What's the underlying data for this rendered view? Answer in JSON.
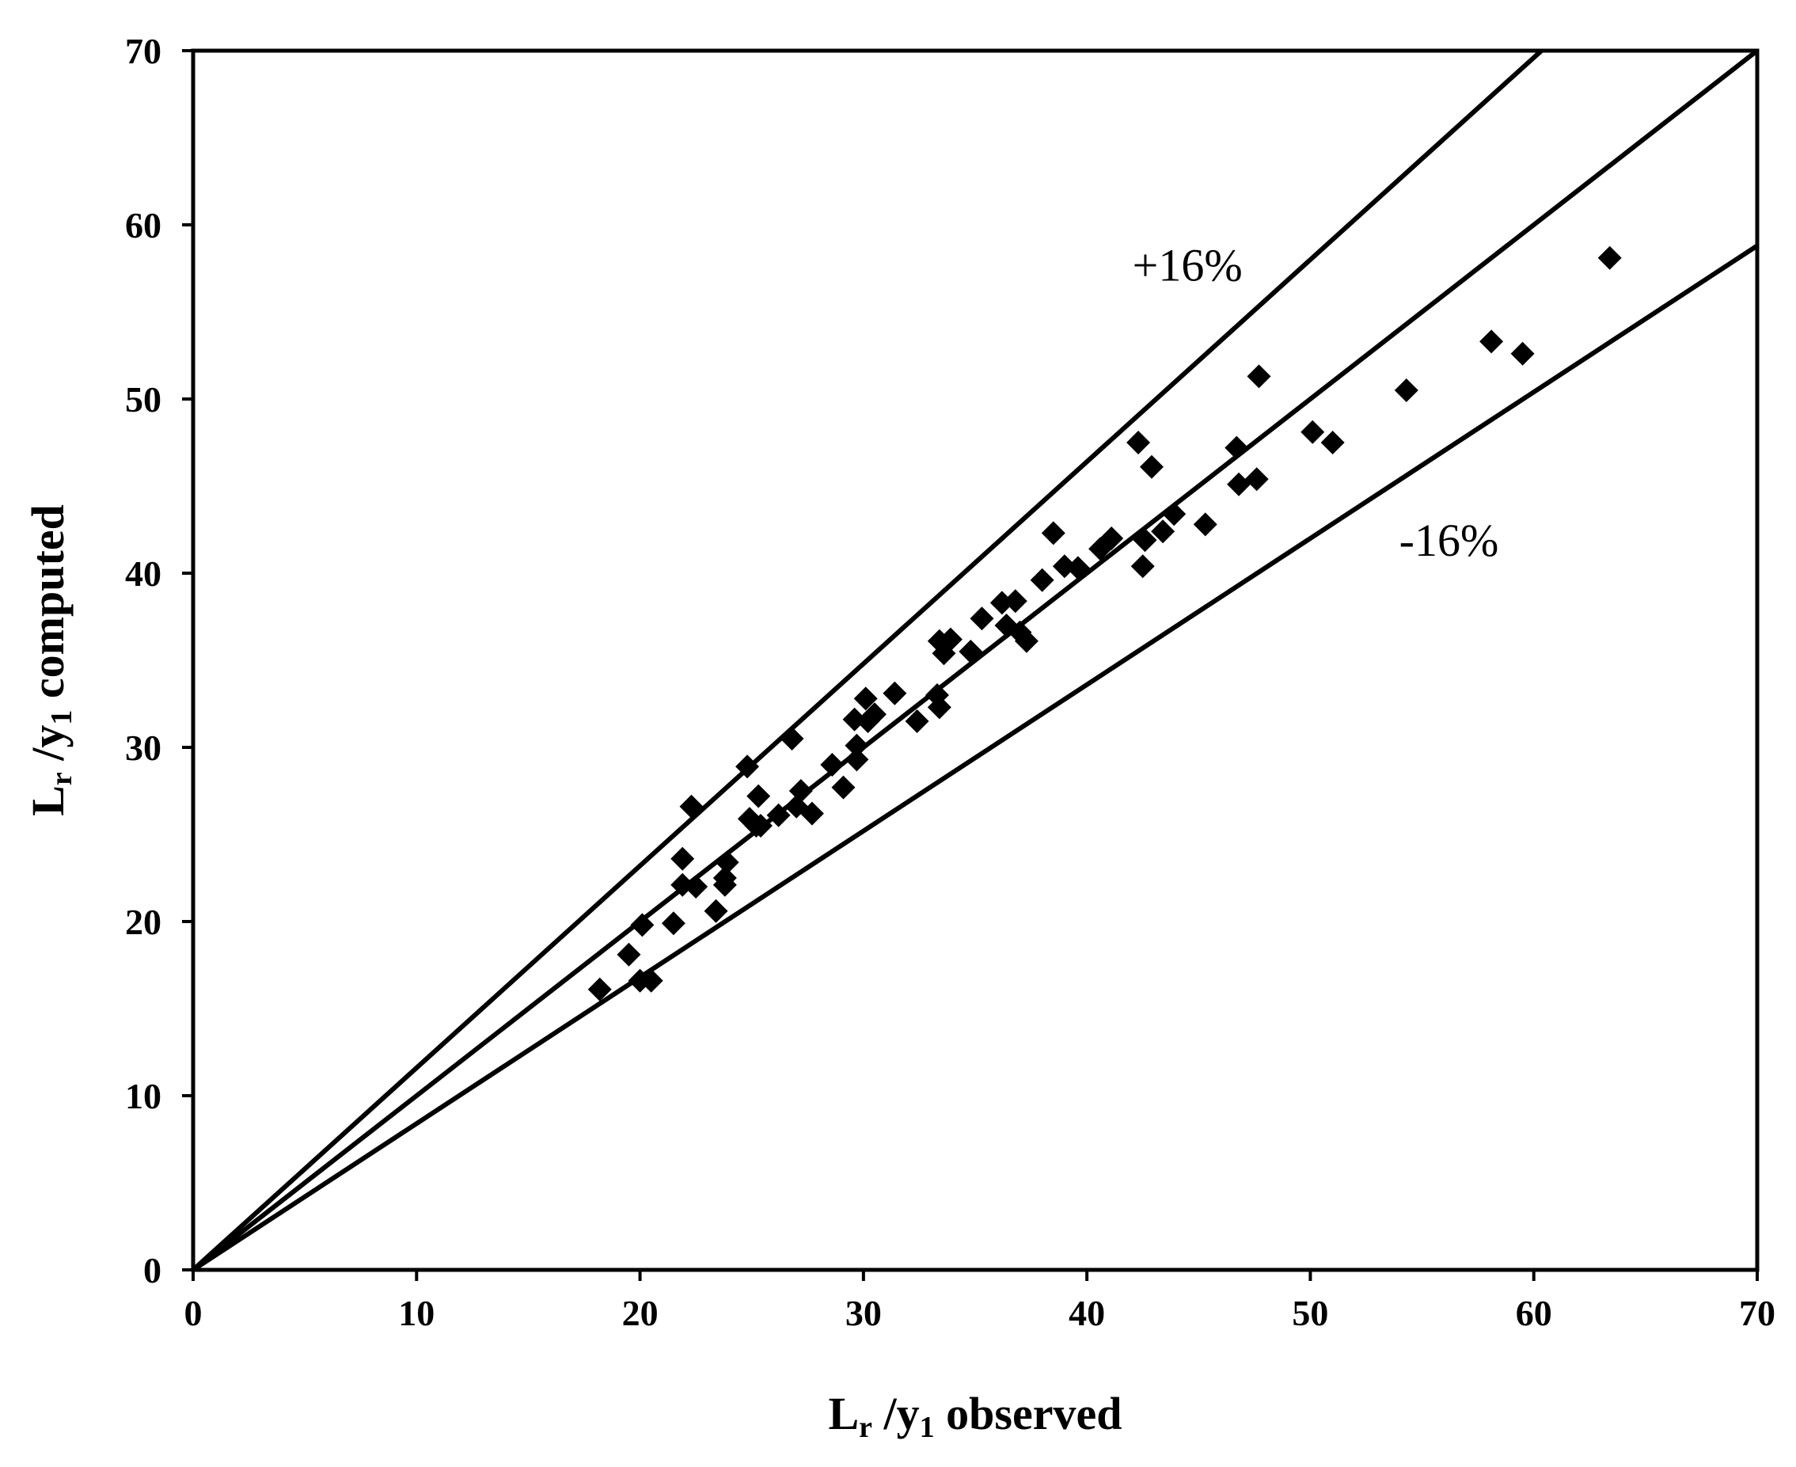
{
  "chart_data": {
    "type": "scatter",
    "xlabel": {
      "main": "L",
      "sub1": "r",
      "mid": " /y",
      "sub2": "1",
      "tail": " observed"
    },
    "ylabel": {
      "main": "L",
      "sub1": "r",
      "mid": " /y",
      "sub2": "1",
      "tail": " computed"
    },
    "xlim": [
      0,
      70
    ],
    "ylim": [
      0,
      70
    ],
    "xticks": [
      0,
      10,
      20,
      30,
      40,
      50,
      60,
      70
    ],
    "yticks": [
      0,
      10,
      20,
      30,
      40,
      50,
      60,
      70
    ],
    "grid": false,
    "legend": "none",
    "colors": {
      "marker": "#000000",
      "line": "#000000"
    },
    "reference_lines": [
      {
        "label": "+16%",
        "slope": 1.16
      },
      {
        "label": "",
        "slope": 1.0
      },
      {
        "label": "-16%",
        "slope": 0.84
      }
    ],
    "annotations": [
      {
        "text": "+16%",
        "x": 44.5,
        "y": 56.8
      },
      {
        "text": "-16%",
        "x": 56.2,
        "y": 41.0
      }
    ],
    "points": [
      [
        18.2,
        16.1
      ],
      [
        19.5,
        18.1
      ],
      [
        20.1,
        19.8
      ],
      [
        20.0,
        16.6
      ],
      [
        20.5,
        16.6
      ],
      [
        21.5,
        19.9
      ],
      [
        21.9,
        23.6
      ],
      [
        21.9,
        22.1
      ],
      [
        22.3,
        26.6
      ],
      [
        22.5,
        22.0
      ],
      [
        23.4,
        20.6
      ],
      [
        23.8,
        22.1
      ],
      [
        23.9,
        23.4
      ],
      [
        23.8,
        22.5
      ],
      [
        24.8,
        28.9
      ],
      [
        24.9,
        25.9
      ],
      [
        25.2,
        25.5
      ],
      [
        25.3,
        27.2
      ],
      [
        25.4,
        25.5
      ],
      [
        26.2,
        26.1
      ],
      [
        26.8,
        30.5
      ],
      [
        27.0,
        26.6
      ],
      [
        27.2,
        27.5
      ],
      [
        27.7,
        26.2
      ],
      [
        28.6,
        29.0
      ],
      [
        29.1,
        27.7
      ],
      [
        29.6,
        31.6
      ],
      [
        29.7,
        29.3
      ],
      [
        29.7,
        30.1
      ],
      [
        30.1,
        32.8
      ],
      [
        30.2,
        31.5
      ],
      [
        30.5,
        31.9
      ],
      [
        31.4,
        33.1
      ],
      [
        32.4,
        31.5
      ],
      [
        33.3,
        33.0
      ],
      [
        33.4,
        32.3
      ],
      [
        33.4,
        36.1
      ],
      [
        33.6,
        35.4
      ],
      [
        33.9,
        36.2
      ],
      [
        34.8,
        35.5
      ],
      [
        35.3,
        37.4
      ],
      [
        36.2,
        38.3
      ],
      [
        36.4,
        37.0
      ],
      [
        36.8,
        38.4
      ],
      [
        37.0,
        36.6
      ],
      [
        37.3,
        36.1
      ],
      [
        38.0,
        39.6
      ],
      [
        38.5,
        42.3
      ],
      [
        39.0,
        40.4
      ],
      [
        39.6,
        40.3
      ],
      [
        40.6,
        41.4
      ],
      [
        41.1,
        42.0
      ],
      [
        42.3,
        47.5
      ],
      [
        42.5,
        40.4
      ],
      [
        42.6,
        41.9
      ],
      [
        42.9,
        46.1
      ],
      [
        43.4,
        42.4
      ],
      [
        43.9,
        43.4
      ],
      [
        45.3,
        42.8
      ],
      [
        46.7,
        47.2
      ],
      [
        46.8,
        45.1
      ],
      [
        47.6,
        45.4
      ],
      [
        47.7,
        51.3
      ],
      [
        50.1,
        48.1
      ],
      [
        51.0,
        47.5
      ],
      [
        54.3,
        50.5
      ],
      [
        58.1,
        53.3
      ],
      [
        59.5,
        52.6
      ],
      [
        63.4,
        58.1
      ]
    ]
  }
}
